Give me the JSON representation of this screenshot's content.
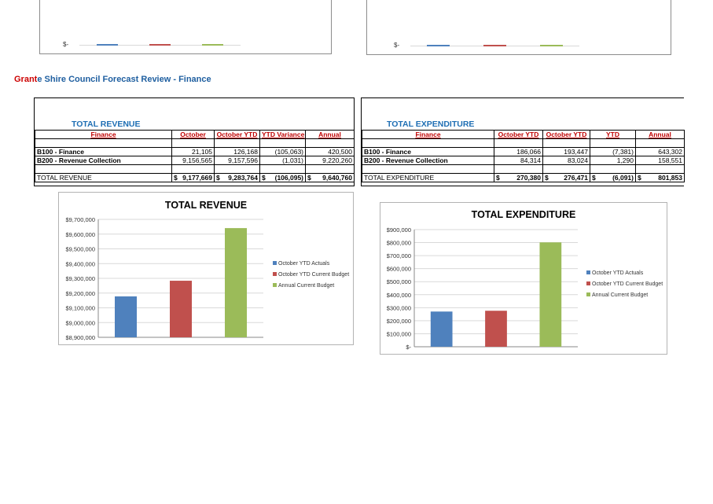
{
  "doc_title": {
    "prefix": "Grant",
    "rest": "e Shire Council Forecast Review - Finance"
  },
  "partial_charts": {
    "axis_label": "$-"
  },
  "colors": {
    "actuals": "#4f81bd",
    "current_budget": "#c0504d",
    "annual_budget": "#9bbb59",
    "title_blue": "#1f6fb4",
    "header_red": "#c00000"
  },
  "revenue": {
    "panel_title": "TOTAL REVENUE",
    "headers": [
      "Finance",
      "October",
      "October YTD",
      "YTD Variance",
      "Annual"
    ],
    "rows": [
      {
        "label": "B100 - Finance",
        "values": [
          "21,105",
          "126,168",
          "(105,063)",
          "420,500"
        ]
      },
      {
        "label": "B200 - Revenue Collection",
        "values": [
          "9,156,565",
          "9,157,596",
          "(1,031)",
          "9,220,260"
        ]
      }
    ],
    "total": {
      "label": "TOTAL REVENUE",
      "currency": "$",
      "values": [
        "9,177,669",
        "9,283,764",
        "(106,095)",
        "9,640,760"
      ]
    }
  },
  "expenditure": {
    "panel_title": "TOTAL EXPENDITURE",
    "headers": [
      "Finance",
      "October YTD",
      "October YTD",
      "YTD",
      "Annual"
    ],
    "rows": [
      {
        "label": "B100 - Finance",
        "values": [
          "186,066",
          "193,447",
          "(7,381)",
          "643,302"
        ]
      },
      {
        "label": "B200 - Revenue Collection",
        "values": [
          "84,314",
          "83,024",
          "1,290",
          "158,551"
        ]
      }
    ],
    "total": {
      "label": "TOTAL EXPENDITURE",
      "currency": "$",
      "values": [
        "270,380",
        "276,471",
        "(6,091)",
        "801,853"
      ]
    }
  },
  "chart_data": [
    {
      "type": "bar",
      "title": "TOTAL REVENUE",
      "series": [
        {
          "name": "October YTD Actuals",
          "value": 9177669,
          "color": "#4f81bd"
        },
        {
          "name": "October YTD Current Budget",
          "value": 9283764,
          "color": "#c0504d"
        },
        {
          "name": "Annual Current Budget",
          "value": 9640760,
          "color": "#9bbb59"
        }
      ],
      "ylim": [
        8900000,
        9700000
      ],
      "ticks": [
        "$8,900,000",
        "$9,000,000",
        "$9,100,000",
        "$9,200,000",
        "$9,300,000",
        "$9,400,000",
        "$9,500,000",
        "$9,600,000",
        "$9,700,000"
      ],
      "grid": true,
      "legend": "right"
    },
    {
      "type": "bar",
      "title": "TOTAL EXPENDITURE",
      "series": [
        {
          "name": "October YTD Actuals",
          "value": 270380,
          "color": "#4f81bd"
        },
        {
          "name": "October YTD Current Budget",
          "value": 276471,
          "color": "#c0504d"
        },
        {
          "name": "Annual Current Budget",
          "value": 801853,
          "color": "#9bbb59"
        }
      ],
      "ylim": [
        0,
        900000
      ],
      "ticks": [
        "$-",
        "$100,000",
        "$200,000",
        "$300,000",
        "$400,000",
        "$500,000",
        "$600,000",
        "$700,000",
        "$800,000",
        "$900,000"
      ],
      "grid": true,
      "legend": "right"
    }
  ]
}
